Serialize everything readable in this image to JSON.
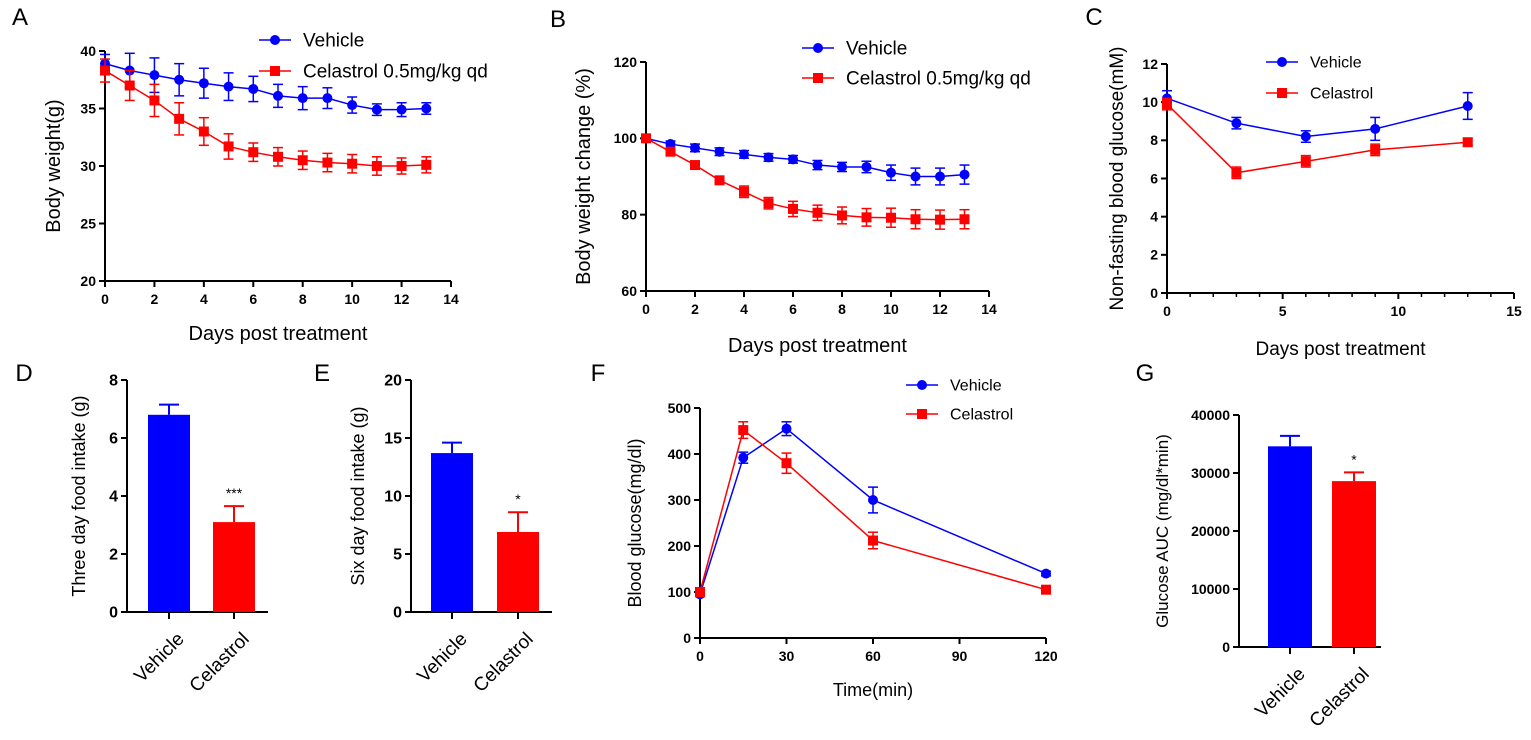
{
  "colors": {
    "vehicle": "#0000ff",
    "celastrol": "#ff0000",
    "axis": "#000000"
  },
  "chart_data": [
    {
      "panel": "A",
      "type": "line",
      "xlabel": "Days post treatment",
      "ylabel": "Body weight(g)",
      "xlim": [
        0,
        14
      ],
      "ylim": [
        20,
        40
      ],
      "xticks": [
        0,
        2,
        4,
        6,
        8,
        10,
        12,
        14
      ],
      "yticks": [
        20,
        25,
        30,
        35,
        40
      ],
      "x": [
        0,
        1,
        2,
        3,
        4,
        5,
        6,
        7,
        8,
        9,
        10,
        11,
        12,
        13
      ],
      "legend": "top-right",
      "series": [
        {
          "name": "Vehicle",
          "marker": "circle",
          "values": [
            38.9,
            38.3,
            37.9,
            37.5,
            37.2,
            36.9,
            36.7,
            36.1,
            35.9,
            35.9,
            35.3,
            34.9,
            34.9,
            35.0
          ],
          "errors": [
            0.8,
            1.5,
            1.5,
            1.4,
            1.3,
            1.2,
            1.1,
            1.0,
            1.0,
            0.9,
            0.7,
            0.5,
            0.6,
            0.5
          ]
        },
        {
          "name": "Celastrol 0.5mg/kg qd",
          "marker": "square",
          "values": [
            38.3,
            37.0,
            35.7,
            34.1,
            33.0,
            31.7,
            31.2,
            30.8,
            30.5,
            30.3,
            30.2,
            30.0,
            30.0,
            30.1
          ],
          "errors": [
            1.0,
            1.3,
            1.4,
            1.4,
            1.2,
            1.1,
            0.8,
            0.8,
            0.8,
            0.8,
            0.8,
            0.8,
            0.7,
            0.7
          ]
        }
      ]
    },
    {
      "panel": "B",
      "type": "line",
      "xlabel": "Days post treatment",
      "ylabel": "Body weight change (%)",
      "xlim": [
        0,
        14
      ],
      "ylim": [
        60,
        120
      ],
      "xticks": [
        0,
        2,
        4,
        6,
        8,
        10,
        12,
        14
      ],
      "yticks": [
        60,
        80,
        100,
        120
      ],
      "x": [
        0,
        1,
        2,
        3,
        4,
        5,
        6,
        7,
        8,
        9,
        10,
        11,
        12,
        13
      ],
      "legend": "top-right",
      "series": [
        {
          "name": "Vehicle",
          "marker": "circle",
          "values": [
            100,
            98.5,
            97.5,
            96.5,
            95.8,
            95.0,
            94.5,
            93.0,
            92.5,
            92.5,
            91.0,
            90.0,
            90.0,
            90.5
          ],
          "errors": [
            0.5,
            0.8,
            1.0,
            1.0,
            1.0,
            1.0,
            1.0,
            1.2,
            1.2,
            1.5,
            2.0,
            2.2,
            2.2,
            2.5
          ]
        },
        {
          "name": "Celastrol 0.5mg/kg qd",
          "marker": "square",
          "values": [
            100,
            96.5,
            93.0,
            89.0,
            86.0,
            83.0,
            81.5,
            80.5,
            79.8,
            79.3,
            79.2,
            78.8,
            78.7,
            78.8
          ],
          "errors": [
            0.5,
            1.0,
            1.0,
            1.0,
            1.5,
            1.5,
            2.0,
            2.0,
            2.2,
            2.3,
            2.5,
            2.5,
            2.5,
            2.5
          ]
        }
      ]
    },
    {
      "panel": "C",
      "type": "line",
      "xlabel": "Days post treatment",
      "ylabel": "Non-fasting blood glucose(mM)",
      "xlim": [
        0,
        15
      ],
      "ylim": [
        0,
        12
      ],
      "xticks": [
        0,
        5,
        10,
        15
      ],
      "yticks": [
        0,
        2,
        4,
        6,
        8,
        10,
        12
      ],
      "x": [
        0,
        3,
        6,
        9,
        13
      ],
      "legend": "top-right",
      "series": [
        {
          "name": "Vehicle",
          "marker": "circle",
          "values": [
            10.2,
            8.9,
            8.2,
            8.6,
            9.8
          ],
          "errors": [
            0.4,
            0.3,
            0.3,
            0.6,
            0.7
          ]
        },
        {
          "name": "Celastrol",
          "marker": "square",
          "values": [
            9.9,
            6.3,
            6.9,
            7.5,
            7.9
          ],
          "errors": [
            0.3,
            0.3,
            0.3,
            0.3,
            0.2
          ]
        }
      ]
    },
    {
      "panel": "D",
      "type": "bar",
      "xlabel": "",
      "ylabel": "Three day food intake (g)",
      "ylim": [
        0,
        8
      ],
      "yticks": [
        0,
        2,
        4,
        6,
        8
      ],
      "categories": [
        "Vehicle",
        "Celastrol"
      ],
      "values": [
        6.8,
        3.1
      ],
      "errors": [
        0.35,
        0.55
      ],
      "annotations": [
        "",
        "***"
      ]
    },
    {
      "panel": "E",
      "type": "bar",
      "xlabel": "",
      "ylabel": "Six day food intake (g)",
      "ylim": [
        0,
        20
      ],
      "yticks": [
        0,
        5,
        10,
        15,
        20
      ],
      "categories": [
        "Vehicle",
        "Celastrol"
      ],
      "values": [
        13.7,
        6.9
      ],
      "errors": [
        0.9,
        1.7
      ],
      "annotations": [
        "",
        "*"
      ]
    },
    {
      "panel": "F",
      "type": "line",
      "xlabel": "Time(min)",
      "ylabel": "Blood glucose(mg/dl)",
      "xlim": [
        0,
        120
      ],
      "ylim": [
        0,
        500
      ],
      "xticks": [
        0,
        30,
        60,
        90,
        120
      ],
      "yticks": [
        0,
        100,
        200,
        300,
        400,
        500
      ],
      "x": [
        0,
        15,
        30,
        60,
        120
      ],
      "legend": "top-right",
      "series": [
        {
          "name": "Vehicle",
          "marker": "circle",
          "values": [
            95,
            392,
            455,
            300,
            140
          ],
          "errors": [
            5,
            12,
            15,
            28,
            5
          ]
        },
        {
          "name": "Celastrol",
          "marker": "square",
          "values": [
            100,
            452,
            380,
            212,
            105
          ],
          "errors": [
            5,
            18,
            22,
            18,
            5
          ]
        }
      ]
    },
    {
      "panel": "G",
      "type": "bar",
      "xlabel": "",
      "ylabel": "Glucose AUC (mg/dl*min)",
      "ylim": [
        0,
        40000
      ],
      "yticks": [
        0,
        10000,
        20000,
        30000,
        40000
      ],
      "categories": [
        "Vehicle",
        "Celastrol"
      ],
      "values": [
        34600,
        28600
      ],
      "errors": [
        1800,
        1500
      ],
      "annotations": [
        "",
        "*"
      ]
    }
  ]
}
